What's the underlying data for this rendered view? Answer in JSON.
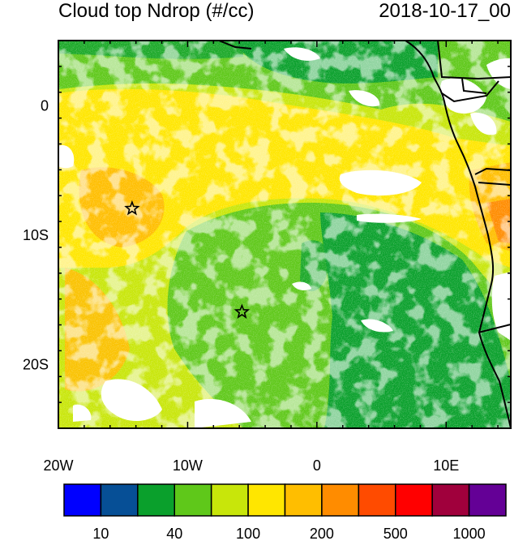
{
  "title_left": "Cloud top Ndrop (#/cc)",
  "title_right": "2018-10-17_00",
  "map": {
    "lon_range": [
      -20,
      15
    ],
    "lat_range": [
      -25,
      5
    ],
    "x_ticks": [
      {
        "label": "20W",
        "lon": -20
      },
      {
        "label": "10W",
        "lon": -10
      },
      {
        "label": "0",
        "lon": 0
      },
      {
        "label": "10E",
        "lon": 10
      }
    ],
    "y_ticks": [
      {
        "label": "0",
        "lat": 0
      },
      {
        "label": "10S",
        "lat": -10
      },
      {
        "label": "20S",
        "lat": -20
      }
    ],
    "markers": [
      {
        "name": "star-marker-north",
        "lon": -14.3,
        "lat": -8.0
      },
      {
        "name": "star-marker-south",
        "lon": -5.8,
        "lat": -16.0
      }
    ]
  },
  "colorbar": {
    "colors": [
      "#0000ff",
      "#064f96",
      "#0aa02c",
      "#5fc81a",
      "#c8e60a",
      "#ffe600",
      "#ffbe00",
      "#ff8c00",
      "#ff4b00",
      "#ff0000",
      "#a0003c",
      "#640096"
    ],
    "labels": [
      {
        "text": "10",
        "boundary": 1
      },
      {
        "text": "40",
        "boundary": 3
      },
      {
        "text": "100",
        "boundary": 5
      },
      {
        "text": "200",
        "boundary": 7
      },
      {
        "text": "500",
        "boundary": 9
      },
      {
        "text": "1000",
        "boundary": 11
      }
    ]
  }
}
